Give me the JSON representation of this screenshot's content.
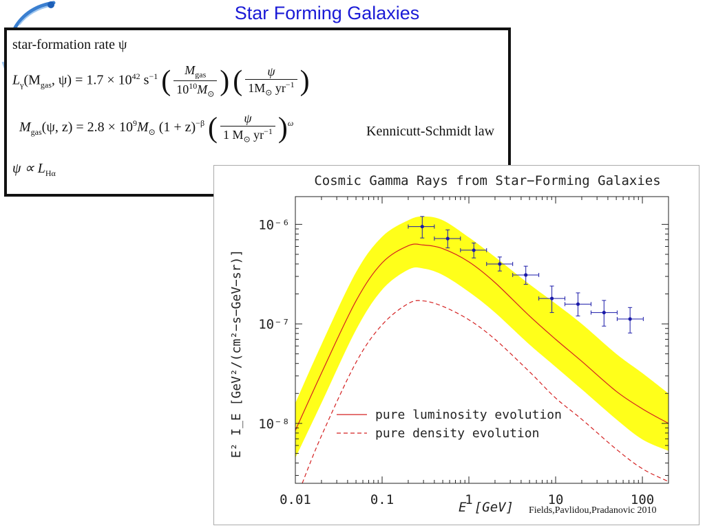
{
  "slide": {
    "title": "Star Forming Galaxies",
    "credit": "Fields,Pavlidou,Pradanovic 2010"
  },
  "equations": {
    "sfr_label": "star-formation rate ψ",
    "lum_lhs": "L",
    "lum_lhs_sub": "γ",
    "lum_args": "(M",
    "lum_args_sub": "gas",
    "lum_args_end": ", ψ) = 1.7 × 10",
    "lum_exp": "42",
    "lum_unit": " s",
    "lum_unit_exp": "−1",
    "frac1_num": "M",
    "frac1_num_sub": "gas",
    "frac1_den": "10",
    "frac1_den_exp": "10",
    "frac1_den_end": "M",
    "frac1_den_sub": "⊙",
    "frac2_num": "ψ",
    "frac2_den": "1M",
    "frac2_den_sub": "⊙",
    "frac2_den_end": " yr",
    "frac2_den_exp": "−1",
    "gas_lhs": "M",
    "gas_lhs_sub": "gas",
    "gas_rhs": "(ψ, z) = 2.8 × 10",
    "gas_exp": "9",
    "gas_rhs2": "M",
    "gas_rhs2_sub": "⊙",
    "gas_rhs3": " (1 + z)",
    "gas_exp2": "−β",
    "frac3_num": "ψ",
    "frac3_den": "1 M",
    "frac3_den_sub": "⊙",
    "frac3_den_end": " yr",
    "frac3_den_exp": "−1",
    "omega": "ω",
    "law": "Kennicutt-Schmidt law",
    "prop": "ψ ∝ L",
    "prop_sub": "Hα"
  },
  "chart_data": {
    "type": "line",
    "title": "Cosmic Gamma Rays from Star−Forming Galaxies",
    "xlabel": "E  [GeV]",
    "ylabel": "E² I_E  [GeV²/(cm²−s−GeV−sr)]",
    "xscale": "log",
    "yscale": "log",
    "xlim": [
      0.01,
      200
    ],
    "ylim": [
      2.5e-09,
      1.9e-06
    ],
    "x_ticks": [
      0.01,
      0.1,
      1,
      10,
      100
    ],
    "x_tick_labels": [
      "0.01",
      "0.1",
      "1",
      "10",
      "100"
    ],
    "y_ticks": [
      1e-08,
      1e-07,
      1e-06
    ],
    "y_tick_labels": [
      "10⁻⁸",
      "10⁻⁷",
      "10⁻⁶"
    ],
    "band": {
      "name": "uncertainty band",
      "x": [
        0.01,
        0.02,
        0.05,
        0.1,
        0.2,
        0.3,
        0.5,
        1,
        2,
        5,
        10,
        20,
        50,
        100,
        200
      ],
      "lower": [
        4.5e-09,
        1.6e-08,
        8.7e-08,
        2.2e-07,
        3.5e-07,
        3.6e-07,
        3.1e-07,
        2.1e-07,
        1.3e-07,
        6.2e-08,
        3.7e-08,
        2.2e-08,
        1.1e-08,
        6.9e-09,
        5.3e-09
      ],
      "upper": [
        1.6e-08,
        6.2e-08,
        3.3e-07,
        7.5e-07,
        1.1e-06,
        1.2e-06,
        1.1e-06,
        7.4e-07,
        4.7e-07,
        2.5e-07,
        1.6e-07,
        1e-07,
        5e-08,
        3.2e-08,
        2e-08
      ]
    },
    "series": [
      {
        "name": "pure luminosity evolution",
        "style": "solid",
        "x": [
          0.01,
          0.02,
          0.05,
          0.1,
          0.2,
          0.3,
          0.5,
          1,
          2,
          5,
          10,
          20,
          50,
          100,
          200
        ],
        "values": [
          8.5e-09,
          3.2e-08,
          1.7e-07,
          4.1e-07,
          6.1e-07,
          6.2e-07,
          5.7e-07,
          4.2e-07,
          2.6e-07,
          1.2e-07,
          7e-08,
          4.2e-08,
          2.1e-08,
          1.4e-08,
          1e-08
        ]
      },
      {
        "name": "pure density evolution",
        "style": "dashed",
        "x": [
          0.012,
          0.02,
          0.05,
          0.1,
          0.2,
          0.3,
          0.5,
          1,
          2,
          5,
          10,
          20,
          50,
          100,
          200
        ],
        "values": [
          2.5e-09,
          7.5e-09,
          4.1e-08,
          9.8e-08,
          1.6e-07,
          1.7e-07,
          1.5e-07,
          1.1e-07,
          7e-08,
          3.3e-08,
          1.8e-08,
          1.1e-08,
          5.5e-09,
          3.5e-09,
          2.6e-09
        ]
      }
    ],
    "points": {
      "name": "data",
      "x": [
        0.29,
        0.57,
        1.14,
        2.27,
        4.53,
        9.05,
        18.1,
        36.1,
        72.1
      ],
      "y": [
        9.5e-07,
        7.2e-07,
        5.5e-07,
        4e-07,
        3.1e-07,
        1.8e-07,
        1.58e-07,
        1.3e-07,
        1.12e-07
      ],
      "x_low": [
        0.2,
        0.4,
        0.8,
        1.6,
        3.2,
        6.4,
        12.8,
        25.6,
        51.2
      ],
      "x_high": [
        0.4,
        0.8,
        1.6,
        3.2,
        6.4,
        12.8,
        25.6,
        51.2,
        102.4
      ],
      "y_low": [
        7.3e-07,
        5.8e-07,
        4.6e-07,
        3.4e-07,
        2.5e-07,
        1.3e-07,
        1.2e-07,
        9.5e-08,
        8.1e-08
      ],
      "y_high": [
        1.2e-06,
        8.8e-07,
        6.5e-07,
        4.7e-07,
        3.8e-07,
        2.4e-07,
        2.05e-07,
        1.72e-07,
        1.46e-07
      ]
    },
    "legend_position": "bottom-center",
    "colors": {
      "band": "#ffff1a",
      "model": "#d42020",
      "points": "#1a1aa8"
    }
  }
}
